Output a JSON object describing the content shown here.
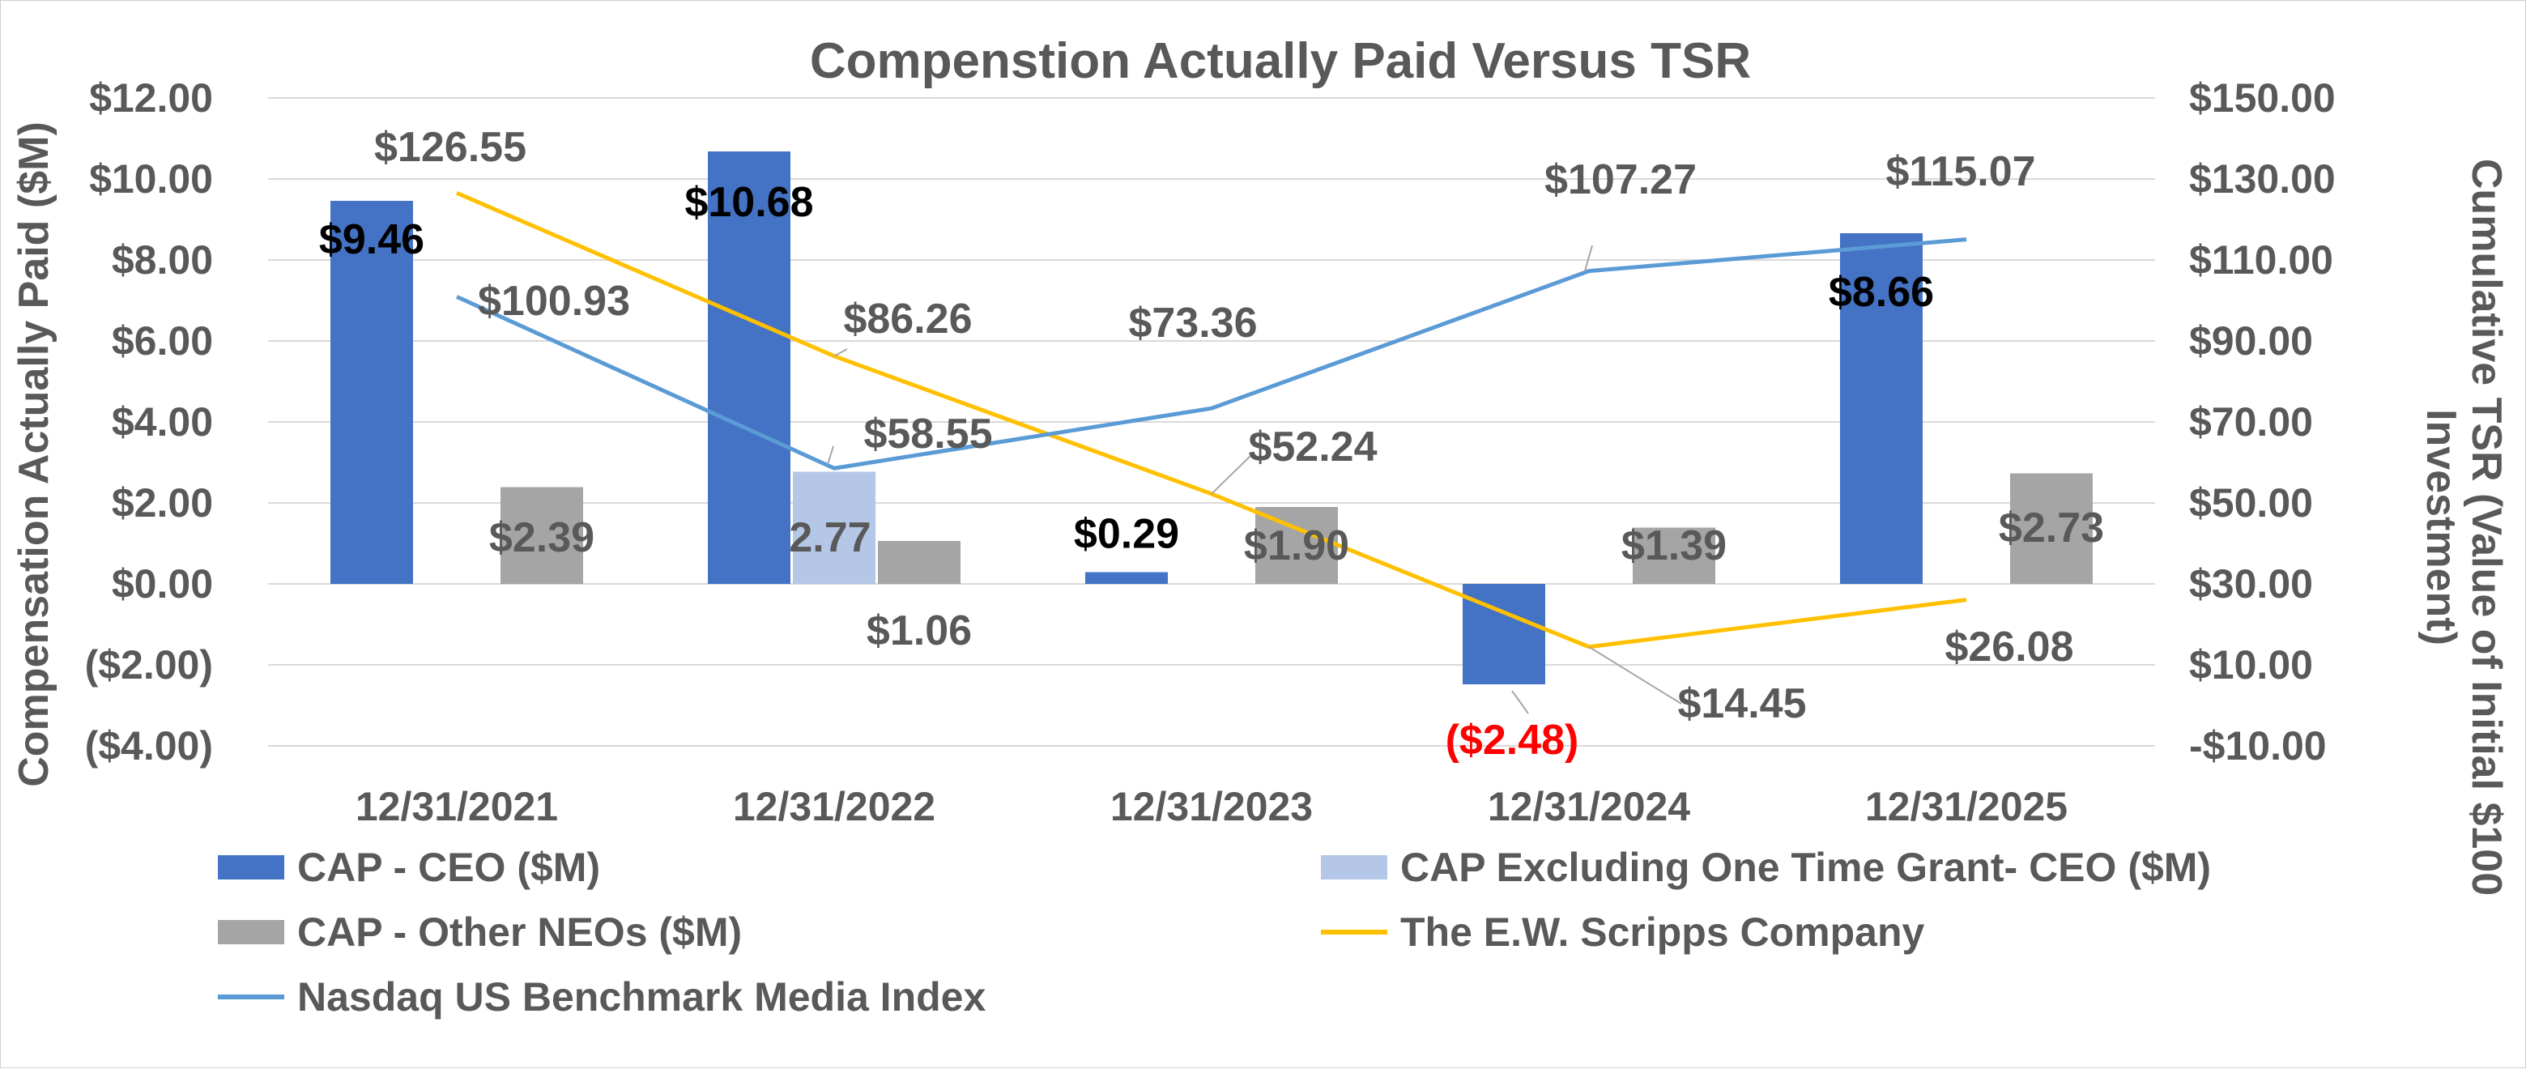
{
  "colors": {
    "cap_ceo": "#4472C4",
    "cap_excl": "#B4C7E7",
    "cap_neo": "#A5A5A5",
    "scripps": "#FFC000",
    "nasdaq": "#5B9BD5",
    "text": "#595959",
    "grid": "#D9D9D9",
    "negative": "#FF0000"
  },
  "chart_data": {
    "type": "bar",
    "title": "Compenstion Actually Paid Versus TSR",
    "categories": [
      "12/31/2021",
      "12/31/2022",
      "12/31/2023",
      "12/31/2024",
      "12/31/2025"
    ],
    "y_left": {
      "label": "Compensation Actually Paid ($M)",
      "range": [
        -4,
        12
      ],
      "ticks": [
        12,
        10,
        8,
        6,
        4,
        2,
        0,
        -2,
        -4
      ],
      "tick_labels": [
        "$12.00",
        "$10.00",
        "$8.00",
        "$6.00",
        "$4.00",
        "$2.00",
        "$0.00",
        "($2.00)",
        "($4.00)"
      ]
    },
    "y_right": {
      "label_line1": "Cumulative TSR  (Value of Initial $100",
      "label_line2": "Investment)",
      "range": [
        -10,
        150
      ],
      "ticks": [
        150,
        130,
        110,
        90,
        70,
        50,
        30,
        10,
        -10
      ],
      "tick_labels": [
        "$150.00",
        "$130.00",
        "$110.00",
        "$90.00",
        "$70.00",
        "$50.00",
        "$30.00",
        "$10.00",
        "-$10.00"
      ]
    },
    "grid": "horizontal",
    "legend_position": "bottom",
    "bar_series": [
      {
        "name": "CAP - CEO ($M)",
        "color_key": "cap_ceo",
        "values": [
          9.46,
          10.68,
          0.29,
          -2.48,
          8.66
        ],
        "labels": [
          "$9.46",
          "$10.68",
          "$0.29",
          "($2.48)",
          "$8.66"
        ]
      },
      {
        "name": "CAP Excluding One Time Grant- CEO ($M)",
        "color_key": "cap_excl",
        "values": [
          null,
          2.77,
          null,
          null,
          null
        ],
        "labels": [
          "",
          "2.77",
          "",
          "",
          ""
        ]
      },
      {
        "name": "CAP - Other NEOs ($M)",
        "color_key": "cap_neo",
        "values": [
          2.39,
          1.06,
          1.9,
          1.39,
          2.73
        ],
        "labels": [
          "$2.39",
          "$1.06",
          "$1.90",
          "$1.39",
          "$2.73"
        ]
      }
    ],
    "line_series": [
      {
        "name": "The E.W. Scripps Company",
        "color_key": "scripps",
        "values": [
          126.55,
          86.26,
          52.24,
          14.45,
          26.08
        ],
        "labels": [
          "$126.55",
          "$86.26",
          "$52.24",
          "$14.45",
          "$26.08"
        ]
      },
      {
        "name": "Nasdaq US Benchmark Media Index",
        "color_key": "nasdaq",
        "values": [
          100.93,
          58.55,
          73.36,
          107.27,
          115.07
        ],
        "labels": [
          "$100.93",
          "$58.55",
          "$73.36",
          "$107.27",
          "$115.07"
        ]
      }
    ]
  }
}
